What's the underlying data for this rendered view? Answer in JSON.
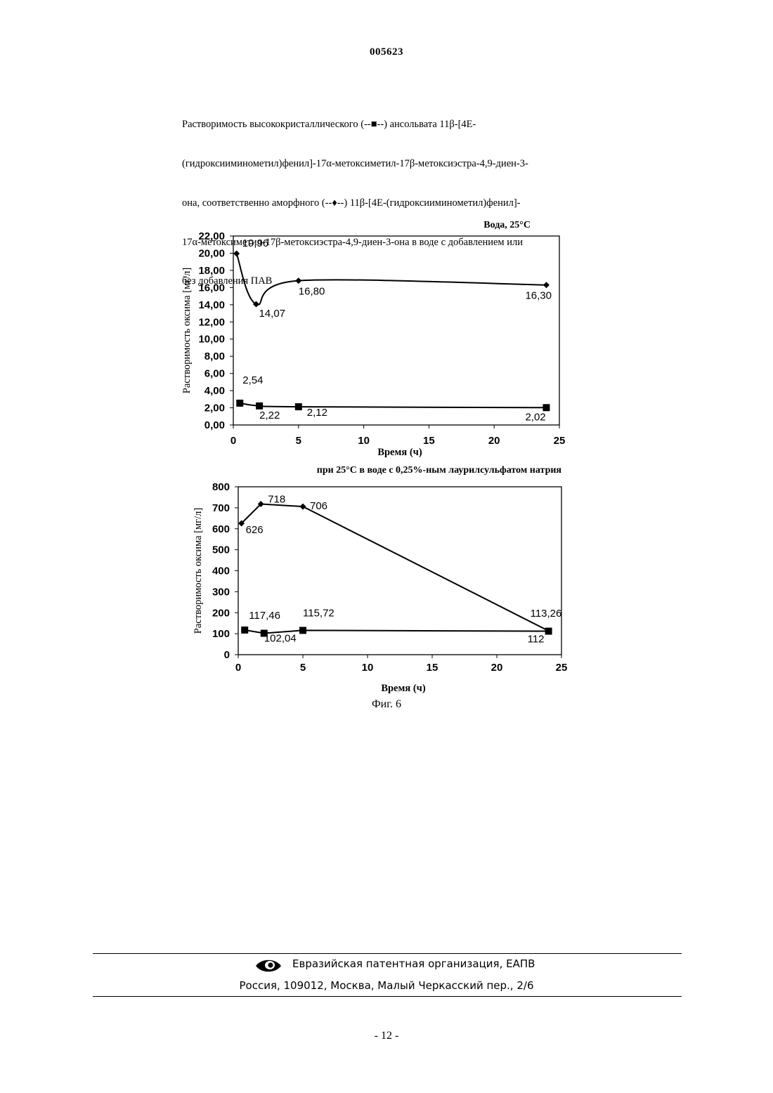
{
  "header": {
    "doc_number": "005623"
  },
  "caption": {
    "lines": [
      "Растворимость высококристаллического (--■--) ансольвата 11β-[4E-",
      "(гидроксииминометил)фенил]-17α-метоксиметил-17β-метоксиэстра-4,9-диен-3-",
      "она, соответственно аморфного (--♦--) 11β-[4E-(гидроксииминометил)фенил]-",
      "17α-метоксиметил-17β-метоксиэстра-4,9-диен-3-она в воде с добавлением или",
      "без добавления ПАВ"
    ]
  },
  "chart_data": [
    {
      "type": "line",
      "title": "Вода, 25°C",
      "xlabel": "Время (ч)",
      "ylabel": "Растворимость оксима [мг/л]",
      "xlim": [
        0,
        25
      ],
      "ylim": [
        0,
        22
      ],
      "xticks": [
        0,
        5,
        10,
        15,
        20,
        25
      ],
      "xtick_labels": [
        "0",
        "5",
        "10",
        "15",
        "20",
        "25"
      ],
      "yticks": [
        0,
        2,
        4,
        6,
        8,
        10,
        12,
        14,
        16,
        18,
        20,
        22
      ],
      "ytick_labels": [
        "0,00",
        "2,00",
        "4,00",
        "6,00",
        "8,00",
        "10,00",
        "12,00",
        "14,00",
        "16,00",
        "18,00",
        "20,00",
        "22,00"
      ],
      "grid": false,
      "series": [
        {
          "marker": "diamond",
          "smooth": true,
          "x": [
            0.25,
            1.75,
            5,
            24
          ],
          "y": [
            19.96,
            14.07,
            16.8,
            16.3
          ],
          "labels": [
            "19,96",
            "14,07",
            "16,80",
            "16,30"
          ]
        },
        {
          "marker": "square",
          "smooth": true,
          "x": [
            0.5,
            2,
            5,
            24
          ],
          "y": [
            2.54,
            2.22,
            2.12,
            2.02
          ],
          "labels": [
            "2,54",
            "2,22",
            "2,12",
            "2,02"
          ]
        }
      ]
    },
    {
      "type": "line",
      "title": "при 25°C в воде с 0,25%-ным лаурилсульфатом натрия",
      "xlabel": "Время (ч)",
      "ylabel": "Растворимость оксима [мг/л]",
      "xlim": [
        0,
        25
      ],
      "ylim": [
        0,
        800
      ],
      "xticks": [
        0,
        5,
        10,
        15,
        20,
        25
      ],
      "xtick_labels": [
        "0",
        "5",
        "10",
        "15",
        "20",
        "25"
      ],
      "yticks": [
        0,
        100,
        200,
        300,
        400,
        500,
        600,
        700,
        800
      ],
      "ytick_labels": [
        "0",
        "100",
        "200",
        "300",
        "400",
        "500",
        "600",
        "700",
        "800"
      ],
      "grid": false,
      "series": [
        {
          "marker": "diamond",
          "smooth": false,
          "x": [
            0.25,
            1.75,
            5,
            24
          ],
          "y": [
            626,
            718,
            706,
            113.26
          ],
          "labels": [
            "626",
            "718",
            "706",
            "113,26"
          ]
        },
        {
          "marker": "square",
          "smooth": false,
          "x": [
            0.5,
            2,
            5,
            24
          ],
          "y": [
            117.46,
            102.04,
            115.72,
            112
          ],
          "labels": [
            "117,46",
            "102,04",
            "115,72",
            "112"
          ]
        }
      ]
    }
  ],
  "figure_label": "Фиг. 6",
  "footer": {
    "org": "Евразийская патентная организация, ЕАПВ",
    "address": "Россия, 109012, Москва, Малый Черкасский пер., 2/6"
  },
  "page_number": "- 12 -"
}
